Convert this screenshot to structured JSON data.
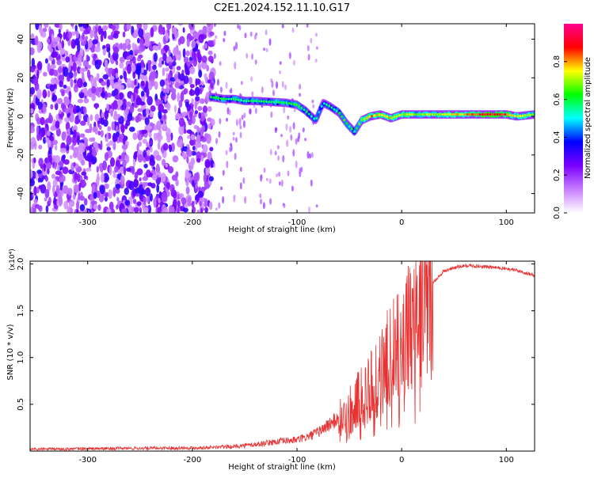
{
  "title": "C2E1.2024.152.11.10.G17",
  "chart_data": [
    {
      "type": "heatmap",
      "xlabel": "Height of straight line (km)",
      "ylabel": "Frequency (Hz)",
      "xlim": [
        -355,
        127
      ],
      "ylim": [
        -50,
        48
      ],
      "xticks": [
        -300,
        -200,
        -100,
        0,
        100
      ],
      "yticks": [
        -40,
        -20,
        0,
        20,
        40
      ],
      "colorbar": {
        "label": "Normalized spectral amplitude",
        "range": [
          0,
          1
        ],
        "ticks": [
          0.0,
          0.2,
          0.4,
          0.6,
          0.8
        ],
        "colors": [
          "#ffffff",
          "#c77dff",
          "#7b00ff",
          "#0000ff",
          "#00ffff",
          "#00ff00",
          "#ffff00",
          "#ff0000",
          "#ff0090"
        ]
      },
      "noise_region": {
        "x_from": -355,
        "x_to": -180,
        "level": 0.25
      },
      "ridge": [
        {
          "x": -182,
          "y": 10,
          "v": 0.62
        },
        {
          "x": -170,
          "y": 9,
          "v": 0.6
        },
        {
          "x": -160,
          "y": 9,
          "v": 0.58
        },
        {
          "x": -150,
          "y": 8,
          "v": 0.56
        },
        {
          "x": -140,
          "y": 8,
          "v": 0.58
        },
        {
          "x": -125,
          "y": 7.5,
          "v": 0.6
        },
        {
          "x": -110,
          "y": 7,
          "v": 0.6
        },
        {
          "x": -100,
          "y": 6,
          "v": 0.62
        },
        {
          "x": -92,
          "y": 3,
          "v": 0.58
        },
        {
          "x": -82,
          "y": -2,
          "v": 0.55
        },
        {
          "x": -75,
          "y": 7,
          "v": 0.5
        },
        {
          "x": -68,
          "y": 5,
          "v": 0.55
        },
        {
          "x": -60,
          "y": 2,
          "v": 0.6
        },
        {
          "x": -52,
          "y": -4,
          "v": 0.62
        },
        {
          "x": -45,
          "y": -8,
          "v": 0.58
        },
        {
          "x": -38,
          "y": -2,
          "v": 0.7
        },
        {
          "x": -30,
          "y": 0,
          "v": 0.8
        },
        {
          "x": -20,
          "y": 1,
          "v": 0.78
        },
        {
          "x": -10,
          "y": -1,
          "v": 0.75
        },
        {
          "x": 0,
          "y": 1,
          "v": 0.72
        },
        {
          "x": 20,
          "y": 1,
          "v": 0.7
        },
        {
          "x": 50,
          "y": 1,
          "v": 0.74
        },
        {
          "x": 80,
          "y": 1,
          "v": 0.88
        },
        {
          "x": 100,
          "y": 1,
          "v": 0.86
        },
        {
          "x": 110,
          "y": 0,
          "v": 0.7
        },
        {
          "x": 127,
          "y": 1,
          "v": 0.72
        }
      ]
    },
    {
      "type": "line",
      "xlabel": "Height of straight line (km)",
      "ylabel": "SNR (10 * v/v)",
      "y_multiplier": "(x10⁴)",
      "xlim": [
        -355,
        127
      ],
      "ylim": [
        0,
        2.03
      ],
      "xticks": [
        -300,
        -200,
        -100,
        0,
        100
      ],
      "yticks": [
        0.5,
        1.0,
        1.5,
        2.0
      ],
      "color": "#e83232",
      "envelope": {
        "x": [
          -355,
          -300,
          -250,
          -200,
          -180,
          -160,
          -140,
          -120,
          -100,
          -90,
          -80,
          -70,
          -60,
          -50,
          -40,
          -30,
          -20,
          -10,
          0,
          10,
          20,
          30,
          40,
          50,
          60,
          70,
          80,
          90,
          100,
          110,
          120,
          127
        ],
        "y": [
          0.02,
          0.025,
          0.03,
          0.035,
          0.04,
          0.05,
          0.07,
          0.1,
          0.12,
          0.15,
          0.2,
          0.28,
          0.35,
          0.45,
          0.55,
          0.7,
          0.9,
          1.05,
          1.2,
          1.35,
          1.55,
          1.8,
          1.92,
          1.96,
          1.98,
          1.98,
          1.97,
          1.96,
          1.95,
          1.93,
          1.9,
          1.88
        ]
      }
    }
  ]
}
